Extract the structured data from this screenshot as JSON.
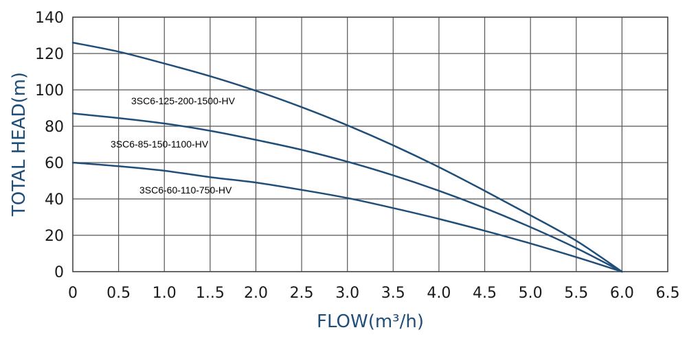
{
  "chart_data": {
    "type": "line",
    "xlabel": "FLOW(m³/h)",
    "ylabel": "TOTAL HEAD(m)",
    "xlim": [
      0,
      6.5
    ],
    "ylim": [
      0,
      140
    ],
    "x_ticks": [
      0,
      0.5,
      1.0,
      1.5,
      2.0,
      2.5,
      3.0,
      3.5,
      4.0,
      4.5,
      5.0,
      5.5,
      6.0,
      6.5
    ],
    "x_tick_labels": [
      "0",
      "0.5",
      "1.0",
      "1..5",
      "2.0",
      "2.5",
      "3.0",
      "3.5",
      "4.0",
      "4.5",
      "5.0",
      "5.5",
      "6.0",
      "6.5"
    ],
    "y_ticks": [
      0,
      20,
      40,
      60,
      80,
      100,
      120,
      140
    ],
    "y_tick_labels": [
      "0",
      "20",
      "40",
      "60",
      "80",
      "100",
      "120",
      "140"
    ],
    "grid": true,
    "line_color": "#1f4e79",
    "series": [
      {
        "name": "3SC6-125-200-1500-HV",
        "x": [
          0,
          0.5,
          1.0,
          1.5,
          2.0,
          2.5,
          3.0,
          3.5,
          4.0,
          4.5,
          5.0,
          5.5,
          6.0
        ],
        "y": [
          126,
          121,
          114.5,
          107.5,
          99.5,
          90.5,
          80.5,
          69.5,
          57.5,
          44.5,
          31,
          17,
          0
        ]
      },
      {
        "name": "3SC6-85-150-1100-HV",
        "x": [
          0,
          0.5,
          1.0,
          1.5,
          2.0,
          2.5,
          3.0,
          3.5,
          4.0,
          4.5,
          5.0,
          5.5,
          6.0
        ],
        "y": [
          87,
          84.5,
          81.5,
          77.5,
          72.5,
          67,
          60.5,
          53,
          44.5,
          35,
          24.5,
          13,
          0
        ]
      },
      {
        "name": "3SC6-60-110-750-HV",
        "x": [
          0,
          0.5,
          1.0,
          1.5,
          2.0,
          2.5,
          3.0,
          3.5,
          4.0,
          4.5,
          5.0,
          5.5,
          6.0
        ],
        "y": [
          60,
          58,
          55.5,
          52,
          49,
          45,
          40.5,
          35,
          29,
          22.5,
          15.5,
          8,
          0
        ]
      }
    ]
  }
}
